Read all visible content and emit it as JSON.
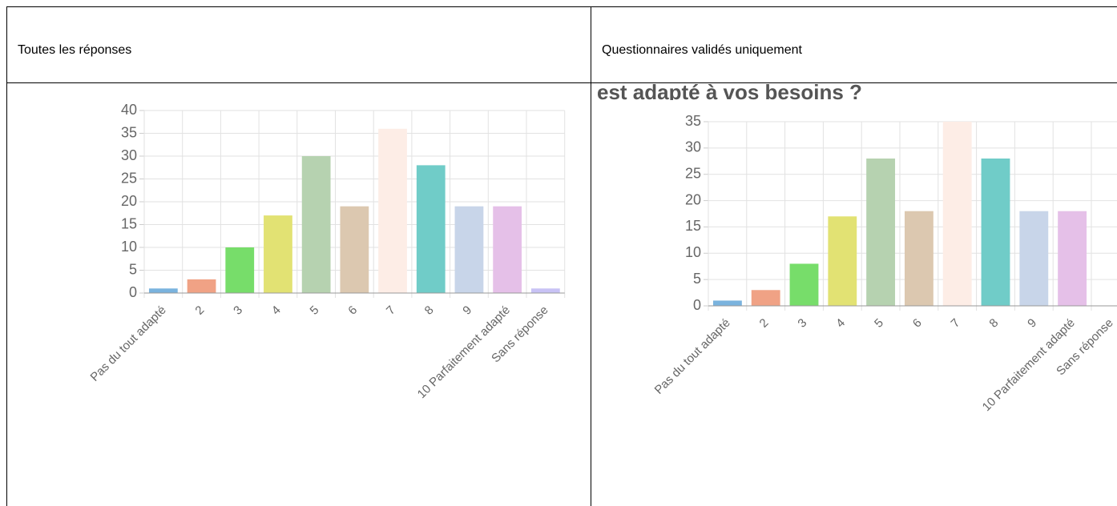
{
  "table": {
    "headers": [
      "Toutes les réponses",
      "Questionnaires validés uniquement"
    ]
  },
  "chart_data": [
    {
      "type": "bar",
      "categories": [
        "Pas du tout adapté",
        "2",
        "3",
        "4",
        "5",
        "6",
        "7",
        "8",
        "9",
        "10 Parfaitement adapté",
        "Sans réponse"
      ],
      "values": [
        1,
        3,
        10,
        17,
        30,
        19,
        36,
        28,
        19,
        19,
        1
      ],
      "colors": [
        "#7ab3de",
        "#f0a285",
        "#77dd6a",
        "#e2e273",
        "#b6d2b0",
        "#dcc8b0",
        "#fdede6",
        "#70ccc8",
        "#c8d5e9",
        "#e5c0e8",
        "#c8c2f5"
      ],
      "ylim": [
        0,
        40
      ],
      "yticks": [
        0,
        5,
        10,
        15,
        20,
        25,
        30,
        35,
        40
      ],
      "grid": true
    },
    {
      "type": "bar",
      "title": "est adapté à vos besoins ?",
      "categories": [
        "Pas du tout adapté",
        "2",
        "3",
        "4",
        "5",
        "6",
        "7",
        "8",
        "9",
        "10 Parfaitement adapté",
        "Sans réponse"
      ],
      "values": [
        1,
        3,
        8,
        17,
        28,
        18,
        35,
        28,
        18,
        18,
        0
      ],
      "colors": [
        "#7ab3de",
        "#f0a285",
        "#77dd6a",
        "#e2e273",
        "#b6d2b0",
        "#dcc8b0",
        "#fdede6",
        "#70ccc8",
        "#c8d5e9",
        "#e5c0e8",
        "#c8c2f5"
      ],
      "ylim": [
        0,
        35
      ],
      "yticks": [
        0,
        5,
        10,
        15,
        20,
        25,
        30,
        35
      ],
      "grid": true
    }
  ]
}
